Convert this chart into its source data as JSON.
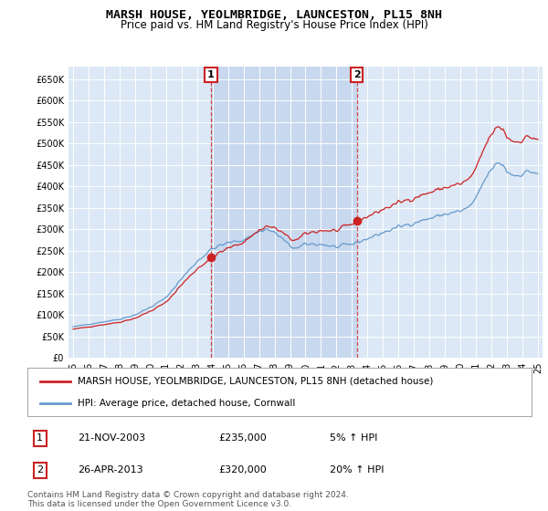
{
  "title": "MARSH HOUSE, YEOLMBRIDGE, LAUNCESTON, PL15 8NH",
  "subtitle": "Price paid vs. HM Land Registry's House Price Index (HPI)",
  "background_color": "#ffffff",
  "plot_bg_color": "#dce8f5",
  "plot_bg_between_color": "#c8d8ee",
  "grid_color": "#ffffff",
  "red_color": "#cc2222",
  "blue_color": "#6699cc",
  "legend_label_red": "MARSH HOUSE, YEOLMBRIDGE, LAUNCESTON, PL15 8NH (detached house)",
  "legend_label_blue": "HPI: Average price, detached house, Cornwall",
  "annotation1_date": "21-NOV-2003",
  "annotation1_price": "£235,000",
  "annotation1_hpi": "5% ↑ HPI",
  "annotation2_date": "26-APR-2013",
  "annotation2_price": "£320,000",
  "annotation2_hpi": "20% ↑ HPI",
  "footer_text": "Contains HM Land Registry data © Crown copyright and database right 2024.\nThis data is licensed under the Open Government Licence v3.0.",
  "sale1_year": 2003.89,
  "sale2_year": 2013.32,
  "sale1_value": 235000,
  "sale2_value": 320000,
  "ylim": [
    0,
    680000
  ],
  "yticks": [
    0,
    50000,
    100000,
    150000,
    200000,
    250000,
    300000,
    350000,
    400000,
    450000,
    500000,
    550000,
    600000,
    650000
  ],
  "ytick_labels": [
    "£0",
    "£50K",
    "£100K",
    "£150K",
    "£200K",
    "£250K",
    "£300K",
    "£350K",
    "£400K",
    "£450K",
    "£500K",
    "£550K",
    "£600K",
    "£650K"
  ]
}
